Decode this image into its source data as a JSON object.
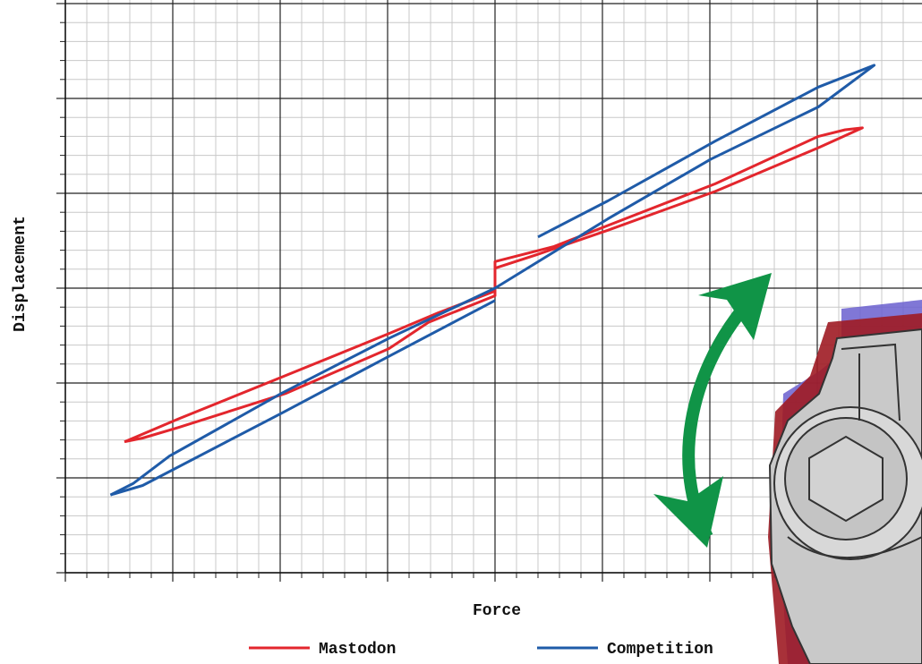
{
  "chart_data": {
    "type": "line",
    "x_label": "Force",
    "y_label": "Displacement",
    "xlim": [
      -4,
      4
    ],
    "ylim": [
      -3,
      3
    ],
    "xticks": [
      -4,
      -3,
      -2,
      -1,
      0,
      1,
      2,
      3,
      4
    ],
    "yticks": [
      -3,
      -2,
      -1,
      0,
      1,
      2,
      3
    ],
    "grid": true,
    "legend": "bottom",
    "series": [
      {
        "name": "Mastodon",
        "color": "#e3262d",
        "x": [
          -3.45,
          -2.95,
          -1.99,
          -0.99,
          -0.53,
          0,
          0,
          0.55,
          1.05,
          2.05,
          3.01,
          3.26,
          3.42,
          3.01,
          2.05,
          1.05,
          0.38,
          0,
          0,
          -0.62,
          -0.99,
          -1.95,
          -2.95,
          -3.28,
          -3.45
        ],
        "values": [
          -1.62,
          -1.38,
          -0.94,
          -0.48,
          -0.26,
          -0.03,
          0.28,
          0.44,
          0.66,
          1.1,
          1.6,
          1.67,
          1.69,
          1.48,
          1.02,
          0.61,
          0.35,
          0.21,
          -0.08,
          -0.36,
          -0.64,
          -1.11,
          -1.47,
          -1.58,
          -1.62
        ]
      },
      {
        "name": "Competition",
        "color": "#1f5ba8",
        "x": [
          -3.58,
          -3.28,
          -1.99,
          -0.99,
          0,
          null,
          0.4,
          1.05,
          2.05,
          3.01,
          3.53,
          3.01,
          2.01,
          1.05,
          0,
          -0.99,
          -1.99,
          -3.03,
          -3.37,
          -3.58
        ],
        "values": [
          -2.18,
          -2.08,
          -1.32,
          -0.72,
          -0.13,
          null,
          0.54,
          0.92,
          1.55,
          2.12,
          2.35,
          1.91,
          1.36,
          0.73,
          0,
          -0.53,
          -1.11,
          -1.77,
          -2.06,
          -2.18
        ]
      }
    ]
  }
}
